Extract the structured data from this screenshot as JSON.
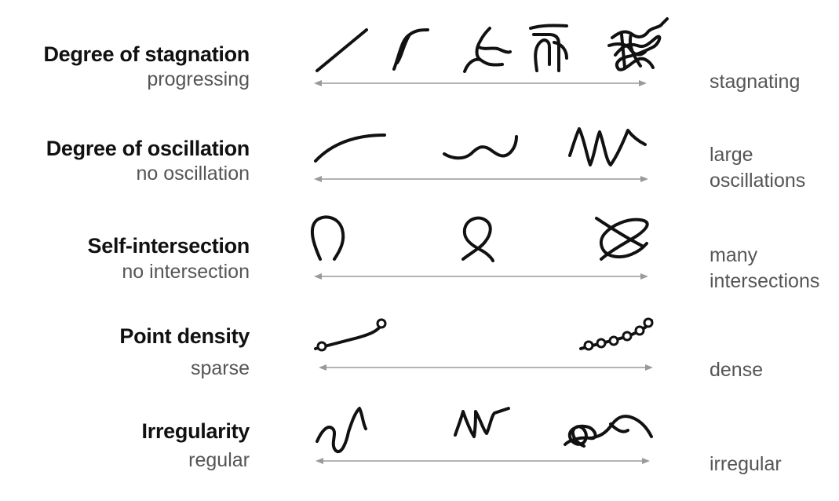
{
  "rows": [
    {
      "id": "stagnation",
      "title": "Degree of stagnation",
      "low": "progressing",
      "high": "stagnating"
    },
    {
      "id": "oscillation",
      "title": "Degree of oscillation",
      "low": "no oscillation",
      "high": "large oscillations",
      "high_lines": [
        "large",
        "oscillations"
      ]
    },
    {
      "id": "intersection",
      "title": "Self-intersection",
      "low": "no intersection",
      "high": "many intersections",
      "high_lines": [
        "many",
        "intersections"
      ]
    },
    {
      "id": "density",
      "title": "Point density",
      "low": "sparse",
      "high": "dense"
    },
    {
      "id": "irregularity",
      "title": "Irregularity",
      "low": "regular",
      "high": "irregular"
    }
  ],
  "colors": {
    "stroke": "#111111",
    "axis": "#9a9a9a",
    "label": "#555555"
  }
}
